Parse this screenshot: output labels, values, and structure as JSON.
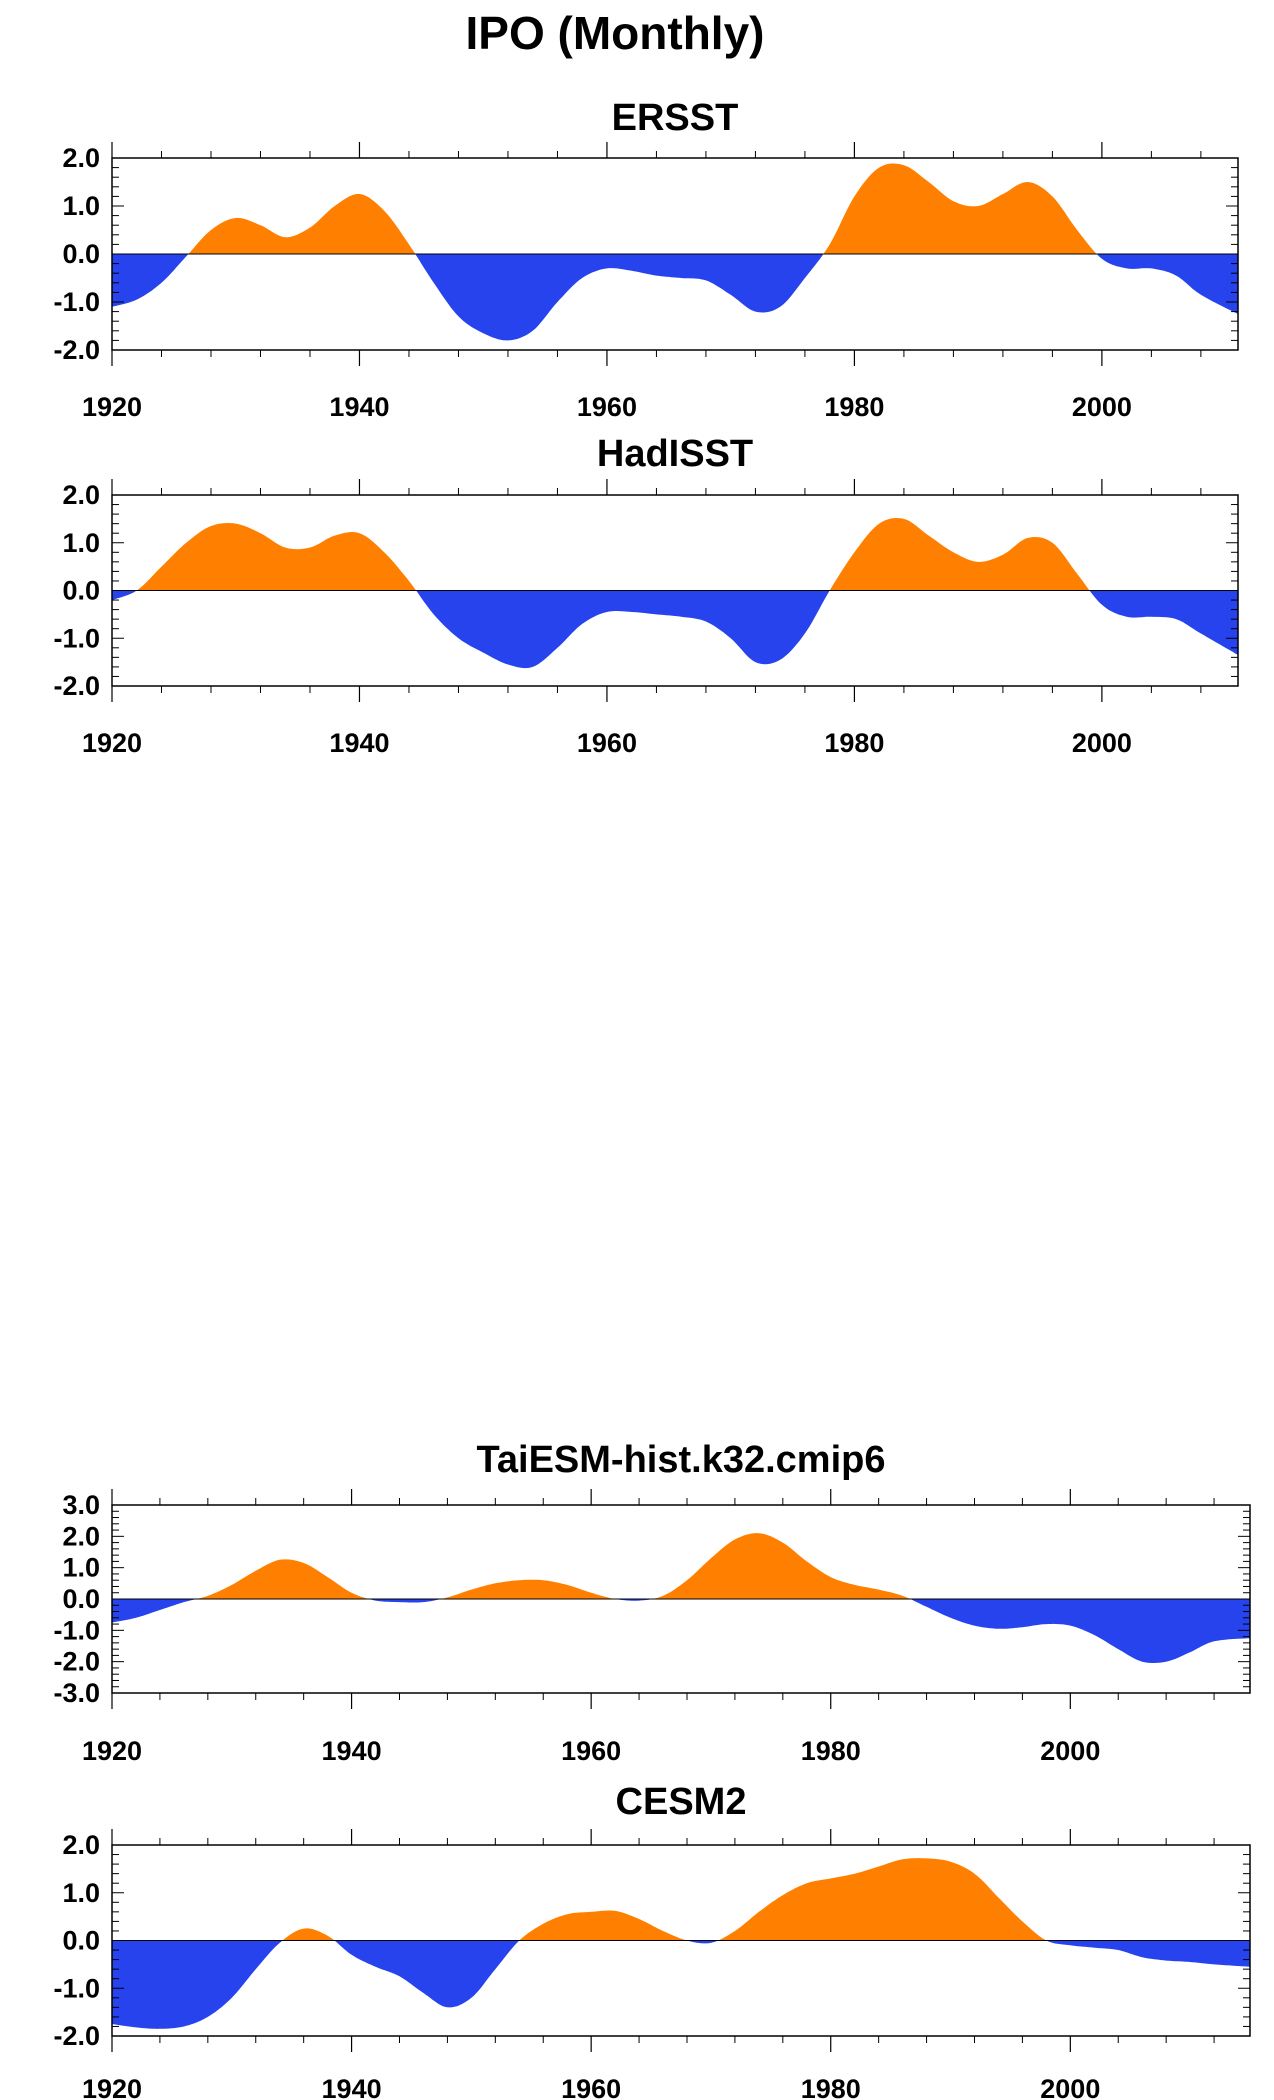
{
  "figure_title": "IPO (Monthly)",
  "colors": {
    "positive": "#ff8000",
    "negative": "#2643ee",
    "axis": "#000000"
  },
  "chart_data": [
    {
      "type": "area",
      "title": "ERSST",
      "xlabel": "",
      "ylabel": "",
      "xlim": [
        1920,
        2011
      ],
      "ylim": [
        -2.0,
        2.0
      ],
      "yticks": [
        2.0,
        1.0,
        0.0,
        -1.0,
        -2.0
      ],
      "ytick_labels": [
        "2.0",
        "1.0",
        "0.0",
        "-1.0",
        "-2.0"
      ],
      "xticks": [
        1920,
        1940,
        1960,
        1980,
        2000
      ],
      "xtick_labels": [
        "1920",
        "1940",
        "1960",
        "1980",
        "2000"
      ],
      "x": [
        1920,
        1922,
        1924,
        1926,
        1928,
        1930,
        1932,
        1934,
        1936,
        1938,
        1940,
        1942,
        1944,
        1946,
        1948,
        1950,
        1952,
        1954,
        1956,
        1958,
        1960,
        1962,
        1964,
        1966,
        1968,
        1970,
        1972,
        1974,
        1976,
        1978,
        1980,
        1982,
        1984,
        1986,
        1988,
        1990,
        1992,
        1994,
        1996,
        1998,
        2000,
        2002,
        2004,
        2006,
        2008,
        2011
      ],
      "y": [
        -1.1,
        -0.95,
        -0.6,
        -0.05,
        0.5,
        0.75,
        0.6,
        0.35,
        0.55,
        1.0,
        1.25,
        0.9,
        0.2,
        -0.6,
        -1.3,
        -1.65,
        -1.8,
        -1.6,
        -1.0,
        -0.5,
        -0.3,
        -0.35,
        -0.45,
        -0.5,
        -0.55,
        -0.85,
        -1.2,
        -1.1,
        -0.5,
        0.2,
        1.2,
        1.8,
        1.85,
        1.5,
        1.1,
        1.0,
        1.25,
        1.5,
        1.2,
        0.5,
        -0.1,
        -0.3,
        -0.3,
        -0.45,
        -0.85,
        -1.25
      ]
    },
    {
      "type": "area",
      "title": "HadISST",
      "xlabel": "",
      "ylabel": "",
      "xlim": [
        1920,
        2011
      ],
      "ylim": [
        -2.0,
        2.0
      ],
      "yticks": [
        2.0,
        1.0,
        0.0,
        -1.0,
        -2.0
      ],
      "ytick_labels": [
        "2.0",
        "1.0",
        "0.0",
        "-1.0",
        "-2.0"
      ],
      "xticks": [
        1920,
        1940,
        1960,
        1980,
        2000
      ],
      "xtick_labels": [
        "1920",
        "1940",
        "1960",
        "1980",
        "2000"
      ],
      "x": [
        1920,
        1922,
        1924,
        1926,
        1928,
        1930,
        1932,
        1934,
        1936,
        1938,
        1940,
        1942,
        1944,
        1946,
        1948,
        1950,
        1952,
        1954,
        1956,
        1958,
        1960,
        1962,
        1964,
        1966,
        1968,
        1970,
        1972,
        1974,
        1976,
        1978,
        1980,
        1982,
        1984,
        1986,
        1988,
        1990,
        1992,
        1994,
        1996,
        1998,
        2000,
        2002,
        2004,
        2006,
        2008,
        2011
      ],
      "y": [
        -0.2,
        0.0,
        0.5,
        1.0,
        1.35,
        1.4,
        1.2,
        0.9,
        0.9,
        1.15,
        1.2,
        0.8,
        0.2,
        -0.5,
        -1.0,
        -1.3,
        -1.55,
        -1.6,
        -1.2,
        -0.7,
        -0.45,
        -0.45,
        -0.5,
        -0.55,
        -0.65,
        -1.0,
        -1.5,
        -1.45,
        -0.9,
        0.0,
        0.8,
        1.4,
        1.5,
        1.15,
        0.8,
        0.6,
        0.75,
        1.1,
        1.0,
        0.35,
        -0.3,
        -0.55,
        -0.55,
        -0.6,
        -0.9,
        -1.35
      ]
    },
    {
      "type": "area",
      "title": "TaiESM-hist.k32.cmip6",
      "xlabel": "",
      "ylabel": "",
      "xlim": [
        1920,
        2015
      ],
      "ylim": [
        -3.0,
        3.0
      ],
      "yticks": [
        3.0,
        2.0,
        1.0,
        0.0,
        -1.0,
        -2.0,
        -3.0
      ],
      "ytick_labels": [
        "3.0",
        "2.0",
        "1.0",
        "0.0",
        "-1.0",
        "-2.0",
        "-3.0"
      ],
      "xticks": [
        1920,
        1940,
        1960,
        1980,
        2000
      ],
      "xtick_labels": [
        "1920",
        "1940",
        "1960",
        "1980",
        "2000"
      ],
      "x": [
        1920,
        1922,
        1924,
        1926,
        1928,
        1930,
        1932,
        1934,
        1936,
        1938,
        1940,
        1942,
        1944,
        1946,
        1948,
        1950,
        1952,
        1954,
        1956,
        1958,
        1960,
        1962,
        1964,
        1966,
        1968,
        1970,
        1972,
        1974,
        1976,
        1978,
        1980,
        1982,
        1984,
        1986,
        1988,
        1990,
        1992,
        1994,
        1996,
        1998,
        2000,
        2002,
        2004,
        2006,
        2008,
        2010,
        2012,
        2015
      ],
      "y": [
        -0.75,
        -0.6,
        -0.35,
        -0.1,
        0.1,
        0.45,
        0.9,
        1.25,
        1.15,
        0.7,
        0.2,
        -0.05,
        -0.1,
        -0.1,
        0.05,
        0.3,
        0.5,
        0.6,
        0.6,
        0.45,
        0.2,
        0.0,
        -0.05,
        0.1,
        0.6,
        1.3,
        1.9,
        2.1,
        1.8,
        1.2,
        0.7,
        0.45,
        0.3,
        0.1,
        -0.25,
        -0.6,
        -0.85,
        -0.95,
        -0.9,
        -0.8,
        -0.85,
        -1.15,
        -1.6,
        -2.0,
        -2.0,
        -1.7,
        -1.35,
        -1.25
      ]
    },
    {
      "type": "area",
      "title": "CESM2",
      "xlabel": "",
      "ylabel": "",
      "xlim": [
        1920,
        2015
      ],
      "ylim": [
        -2.0,
        2.0
      ],
      "yticks": [
        2.0,
        1.0,
        0.0,
        -1.0,
        -2.0
      ],
      "ytick_labels": [
        "2.0",
        "1.0",
        "0.0",
        "-1.0",
        "-2.0"
      ],
      "xticks": [
        1920,
        1940,
        1960,
        1980,
        2000
      ],
      "xtick_labels": [
        "1920",
        "1940",
        "1960",
        "1980",
        "2000"
      ],
      "x": [
        1920,
        1922,
        1924,
        1926,
        1928,
        1930,
        1932,
        1934,
        1936,
        1938,
        1940,
        1942,
        1944,
        1946,
        1948,
        1950,
        1952,
        1954,
        1956,
        1958,
        1960,
        1962,
        1964,
        1966,
        1968,
        1970,
        1972,
        1974,
        1976,
        1978,
        1980,
        1982,
        1984,
        1986,
        1988,
        1990,
        1992,
        1994,
        1996,
        1998,
        2000,
        2002,
        2004,
        2006,
        2008,
        2010,
        2012,
        2015
      ],
      "y": [
        -1.75,
        -1.82,
        -1.85,
        -1.8,
        -1.6,
        -1.2,
        -0.6,
        -0.05,
        0.25,
        0.1,
        -0.3,
        -0.55,
        -0.75,
        -1.1,
        -1.4,
        -1.2,
        -0.6,
        0.0,
        0.35,
        0.55,
        0.6,
        0.62,
        0.45,
        0.2,
        0.0,
        -0.05,
        0.2,
        0.6,
        0.95,
        1.2,
        1.3,
        1.4,
        1.55,
        1.7,
        1.72,
        1.65,
        1.4,
        0.9,
        0.4,
        0.0,
        -0.1,
        -0.15,
        -0.2,
        -0.35,
        -0.42,
        -0.45,
        -0.5,
        -0.55
      ]
    }
  ]
}
